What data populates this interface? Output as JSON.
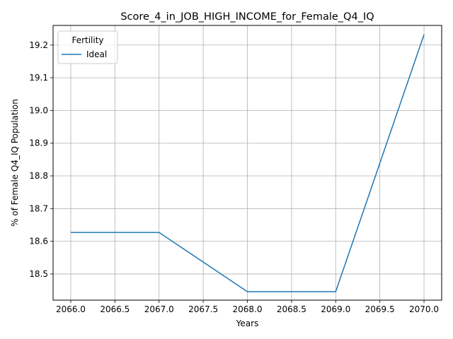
{
  "chart_data": {
    "type": "line",
    "title": "Score_4_in_JOB_HIGH_INCOME_for_Female_Q4_IQ",
    "xlabel": "Years",
    "ylabel": "% of Female Q4_IQ Population",
    "xlim": [
      2065.8,
      2070.2
    ],
    "ylim": [
      18.42,
      19.26
    ],
    "x_ticks": [
      2066.0,
      2066.5,
      2067.0,
      2067.5,
      2068.0,
      2068.5,
      2069.0,
      2069.5,
      2070.0
    ],
    "x_tick_labels": [
      "2066.0",
      "2066.5",
      "2067.0",
      "2067.5",
      "2068.0",
      "2068.5",
      "2069.0",
      "2069.5",
      "2070.0"
    ],
    "y_ticks": [
      18.5,
      18.6,
      18.7,
      18.8,
      18.9,
      19.0,
      19.1,
      19.2
    ],
    "y_tick_labels": [
      "18.5",
      "18.6",
      "18.7",
      "18.8",
      "18.9",
      "19.0",
      "19.1",
      "19.2"
    ],
    "grid": true,
    "legend": {
      "title": "Fertility",
      "placement": "top-left"
    },
    "series": [
      {
        "name": "Ideal",
        "color": "#1f77b4",
        "x": [
          2066,
          2067,
          2068,
          2069,
          2070
        ],
        "y": [
          18.627,
          18.627,
          18.446,
          18.446,
          19.232
        ]
      }
    ]
  }
}
